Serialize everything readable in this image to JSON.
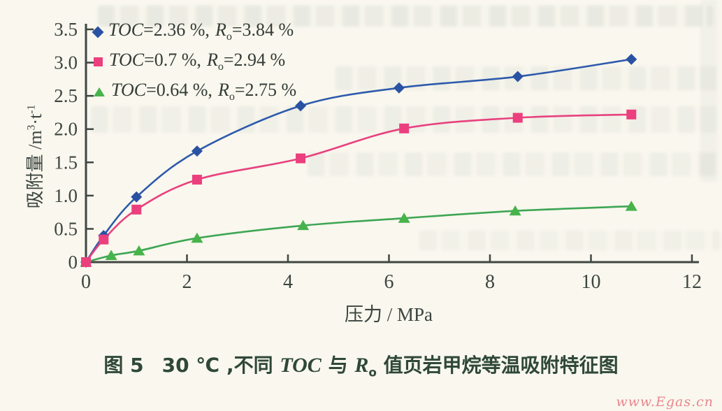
{
  "figure": {
    "caption": {
      "fig_label": "图 5",
      "text1": "30 ℃ ,不同 ",
      "toc": "TOC",
      "text2": " 与 ",
      "r": "R",
      "r_sub": "o",
      "text3": " 值页岩甲烷等温吸附特征图"
    },
    "watermark": "www.Egas.cn"
  },
  "chart_data": {
    "type": "line",
    "title": "",
    "xlabel": "压力 / MPa",
    "ylabel": "吸附量 /m3·t-1",
    "ylabel_parts": {
      "base1": "吸附量 /m",
      "sup1": "3",
      "base2": "·t",
      "sup2": "-1"
    },
    "xlim": [
      0,
      12
    ],
    "ylim": [
      0,
      3.5
    ],
    "x_ticks": [
      0,
      2,
      4,
      6,
      8,
      10,
      12
    ],
    "y_ticks": [
      0,
      0.5,
      1.0,
      1.5,
      2.0,
      2.5,
      3.0,
      3.5
    ],
    "tick_labels": {
      "x": [
        "0",
        "2",
        "4",
        "6",
        "8",
        "10",
        "12"
      ],
      "y": [
        "0",
        "0.5",
        "1.0",
        "1.5",
        "2.0",
        "2.5",
        "3.0",
        "3.5"
      ]
    },
    "grid": false,
    "legend_position": "top-left-inside",
    "series": [
      {
        "name": "TOC=2.36 %, Ro=3.84 %",
        "marker": "diamond",
        "color": "#2a52a3",
        "line_color": "#2d5aab",
        "x": [
          0,
          0.35,
          1.0,
          2.2,
          4.25,
          6.2,
          8.55,
          10.8
        ],
        "y": [
          0,
          0.4,
          0.98,
          1.67,
          2.35,
          2.62,
          2.79,
          3.05
        ]
      },
      {
        "name": "TOC=0.7 %, Ro=2.94 %",
        "marker": "square",
        "color": "#eb3f7e",
        "line_color": "#e8417f",
        "x": [
          0,
          0.35,
          1.0,
          2.2,
          4.25,
          6.3,
          8.55,
          10.8
        ],
        "y": [
          0,
          0.34,
          0.79,
          1.24,
          1.56,
          2.01,
          2.17,
          2.22
        ]
      },
      {
        "name": "TOC=0.64 %, Ro=2.75 %",
        "marker": "triangle",
        "color": "#47b34b",
        "line_color": "#3da653",
        "x": [
          0,
          0.5,
          1.05,
          2.2,
          4.3,
          6.3,
          8.5,
          10.8
        ],
        "y": [
          0,
          0.1,
          0.17,
          0.36,
          0.55,
          0.66,
          0.77,
          0.84
        ]
      }
    ],
    "legend": {
      "items": [
        {
          "marker": "diamond",
          "color": "#2a52a3",
          "toc": "TOC",
          "toc_val": "=2.36 %,",
          "r": "R",
          "r_sub": "o",
          "r_val": "=3.84 %"
        },
        {
          "marker": "square",
          "color": "#eb3f7e",
          "toc": "TOC",
          "toc_val": "=0.7 %,",
          "r": "R",
          "r_sub": "o",
          "r_val": "=2.94 %"
        },
        {
          "marker": "triangle",
          "color": "#47b34b",
          "toc": "TOC",
          "toc_val": "=0.64 %,",
          "r": "R",
          "r_sub": "o",
          "r_val": "=2.75 %"
        }
      ]
    }
  },
  "colors": {
    "background": "#f9f7ee",
    "axis": "#3f4742",
    "tick_text": "#3c453f",
    "caption_text": "#2f4838",
    "watermark": "#e9868c",
    "series_blue": "#2a52a3",
    "series_pink": "#eb3f7e",
    "series_green": "#47b34b"
  }
}
